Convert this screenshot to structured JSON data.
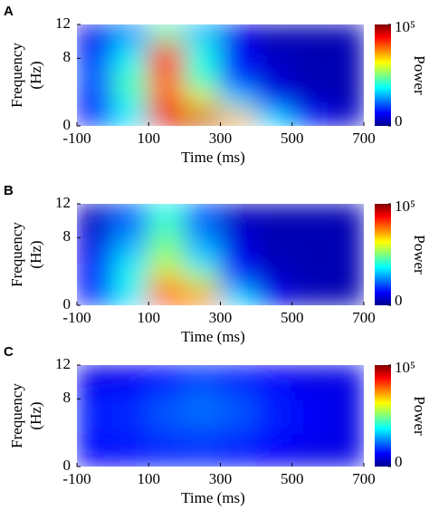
{
  "chart_data": [
    {
      "type": "heatmap",
      "panel": "A",
      "xlabel": "Time (ms)",
      "ylabel": [
        "Frequency",
        "(Hz)"
      ],
      "colorbar_label": "Power",
      "xlim": [
        -100,
        700
      ],
      "xticks": [
        -100,
        100,
        300,
        500,
        700
      ],
      "ylim": [
        0,
        12
      ],
      "yticks": [
        0,
        8,
        12
      ],
      "zlim": [
        0,
        100000
      ],
      "zticks": [
        0,
        {
          "value": 100000,
          "label": "10⁵"
        }
      ],
      "x": [
        -50,
        50,
        150,
        250,
        350,
        450,
        550,
        650
      ],
      "y": [
        1,
        3,
        5,
        7,
        9,
        11
      ],
      "z": [
        [
          15000,
          35000,
          90000,
          95000,
          70000,
          35000,
          15000,
          8000
        ],
        [
          15000,
          40000,
          80000,
          65000,
          35000,
          15000,
          8000,
          5000
        ],
        [
          20000,
          45000,
          75000,
          45000,
          20000,
          8000,
          5000,
          5000
        ],
        [
          20000,
          40000,
          85000,
          40000,
          15000,
          8000,
          5000,
          5000
        ],
        [
          15000,
          35000,
          80000,
          40000,
          12000,
          6000,
          5000,
          5000
        ],
        [
          10000,
          25000,
          45000,
          30000,
          10000,
          5000,
          5000,
          5000
        ]
      ]
    },
    {
      "type": "heatmap",
      "panel": "B",
      "xlabel": "Time (ms)",
      "ylabel": [
        "Frequency",
        "(Hz)"
      ],
      "colorbar_label": "Power",
      "xlim": [
        -100,
        700
      ],
      "xticks": [
        -100,
        100,
        300,
        500,
        700
      ],
      "ylim": [
        0,
        12
      ],
      "yticks": [
        0,
        8,
        12
      ],
      "zlim": [
        0,
        100000
      ],
      "zticks": [
        0,
        {
          "value": 100000,
          "label": "10⁵"
        }
      ],
      "x": [
        -50,
        50,
        150,
        250,
        350,
        450,
        550,
        650
      ],
      "y": [
        1,
        3,
        5,
        7,
        9,
        11
      ],
      "z": [
        [
          15000,
          35000,
          80000,
          75000,
          35000,
          12000,
          6000,
          5000
        ],
        [
          15000,
          40000,
          70000,
          55000,
          20000,
          8000,
          5000,
          5000
        ],
        [
          12000,
          35000,
          55000,
          35000,
          12000,
          6000,
          5000,
          5000
        ],
        [
          10000,
          30000,
          50000,
          30000,
          10000,
          5000,
          5000,
          5000
        ],
        [
          8000,
          25000,
          45000,
          25000,
          8000,
          5000,
          5000,
          5000
        ],
        [
          6000,
          20000,
          40000,
          20000,
          6000,
          5000,
          5000,
          5000
        ]
      ]
    },
    {
      "type": "heatmap",
      "panel": "C",
      "xlabel": "Time (ms)",
      "ylabel": [
        "Frequency",
        "(Hz)"
      ],
      "colorbar_label": "Power",
      "xlim": [
        -100,
        700
      ],
      "xticks": [
        -100,
        100,
        300,
        500,
        700
      ],
      "ylim": [
        0,
        12
      ],
      "yticks": [
        0,
        8,
        12
      ],
      "zlim": [
        0,
        100000
      ],
      "zticks": [
        0,
        {
          "value": 100000,
          "label": "10⁵"
        }
      ],
      "x": [
        -50,
        50,
        150,
        250,
        350,
        450,
        550,
        650
      ],
      "y": [
        1,
        3,
        5,
        7,
        9,
        11
      ],
      "z": [
        [
          12000,
          12000,
          15000,
          15000,
          14000,
          12000,
          10000,
          10000
        ],
        [
          14000,
          15000,
          17000,
          18000,
          16000,
          13000,
          11000,
          10000
        ],
        [
          15000,
          16000,
          20000,
          22000,
          20000,
          15000,
          12000,
          10000
        ],
        [
          16000,
          17000,
          22000,
          24000,
          22000,
          16000,
          12000,
          10000
        ],
        [
          12000,
          13000,
          17000,
          22000,
          18000,
          14000,
          11000,
          10000
        ],
        [
          10000,
          11000,
          13000,
          16000,
          14000,
          12000,
          10000,
          10000
        ]
      ]
    }
  ]
}
